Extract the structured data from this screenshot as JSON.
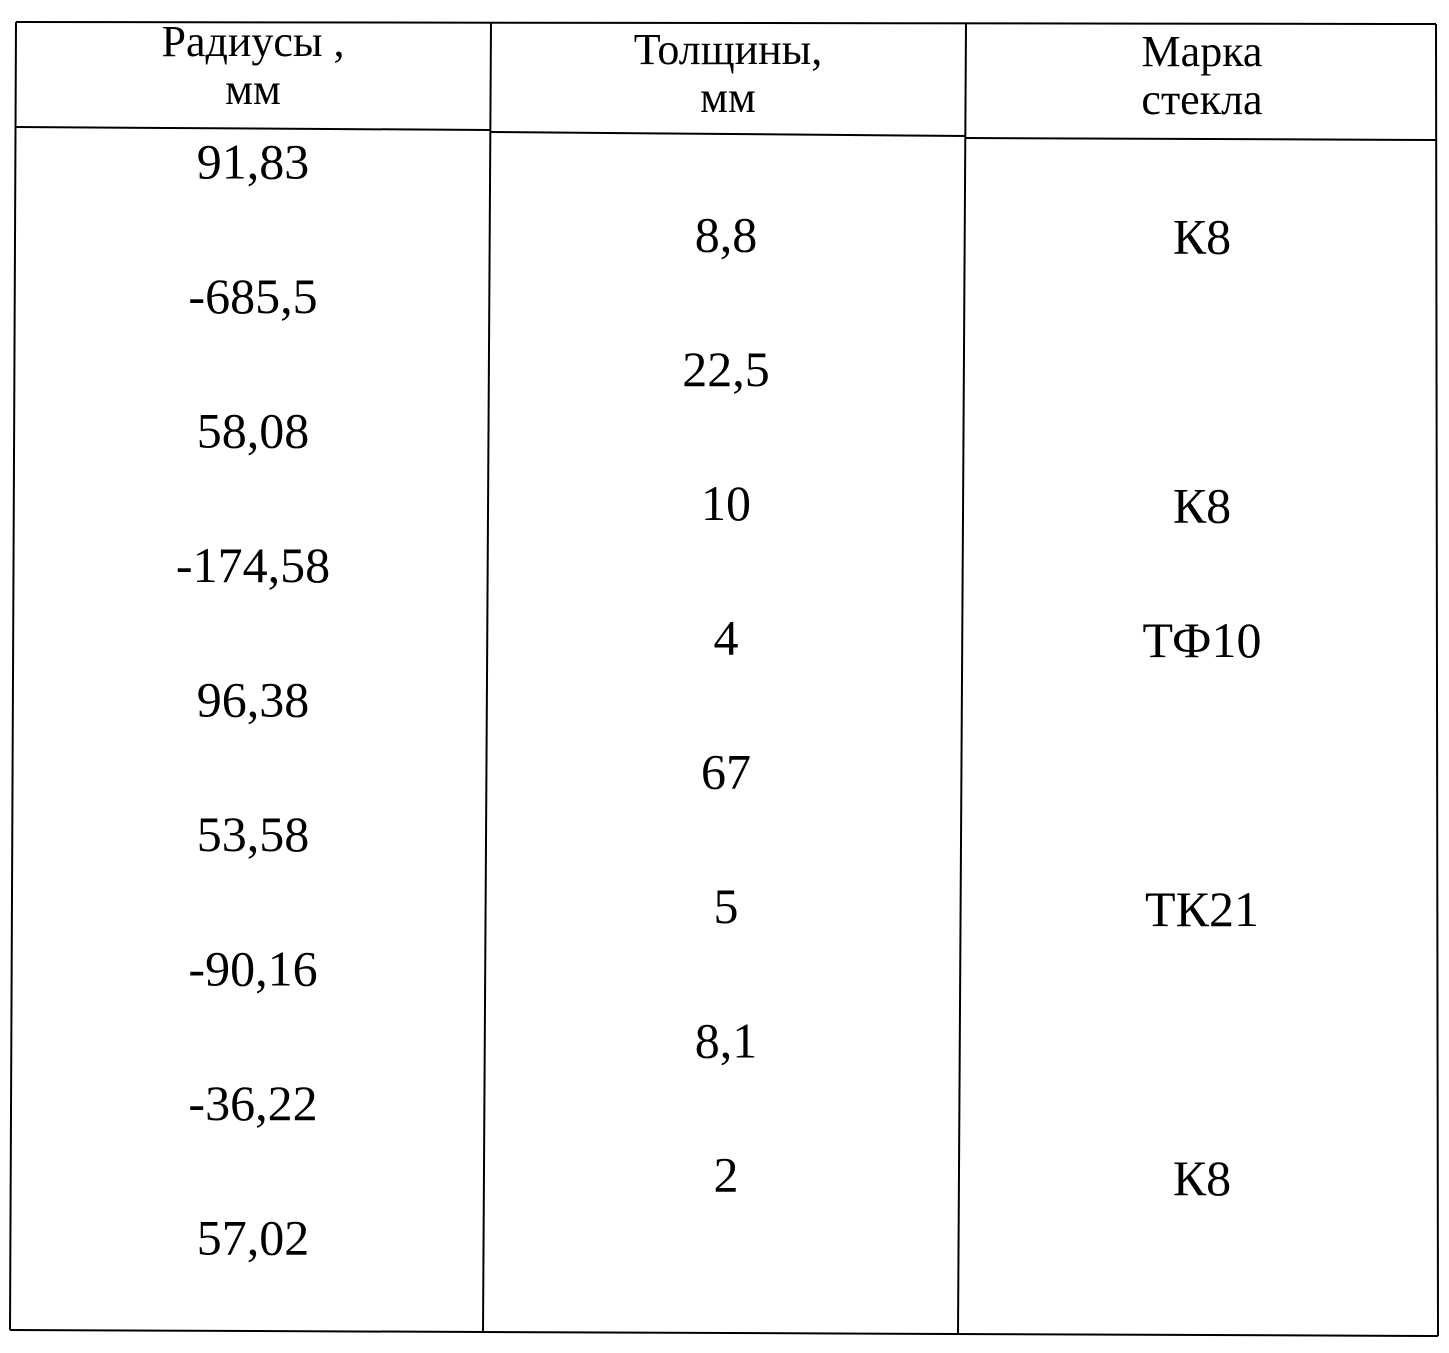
{
  "table": {
    "header": [
      [
        "Радиусы ,",
        "мм"
      ],
      [
        "Толщины,",
        "мм"
      ],
      [
        "Марка",
        "стекла"
      ]
    ],
    "radii": [
      "91,83",
      "-685,5",
      "58,08",
      "-174,58",
      "96,38",
      "53,58",
      "-90,16",
      "-36,22",
      "57,02"
    ],
    "thicknesses": [
      "8,8",
      "22,5",
      "10",
      "4",
      "67",
      "5",
      "8,1",
      "2"
    ],
    "glass": [
      "К8",
      null,
      "К8",
      "ТФ10",
      null,
      "ТК21",
      null,
      "К8"
    ]
  }
}
